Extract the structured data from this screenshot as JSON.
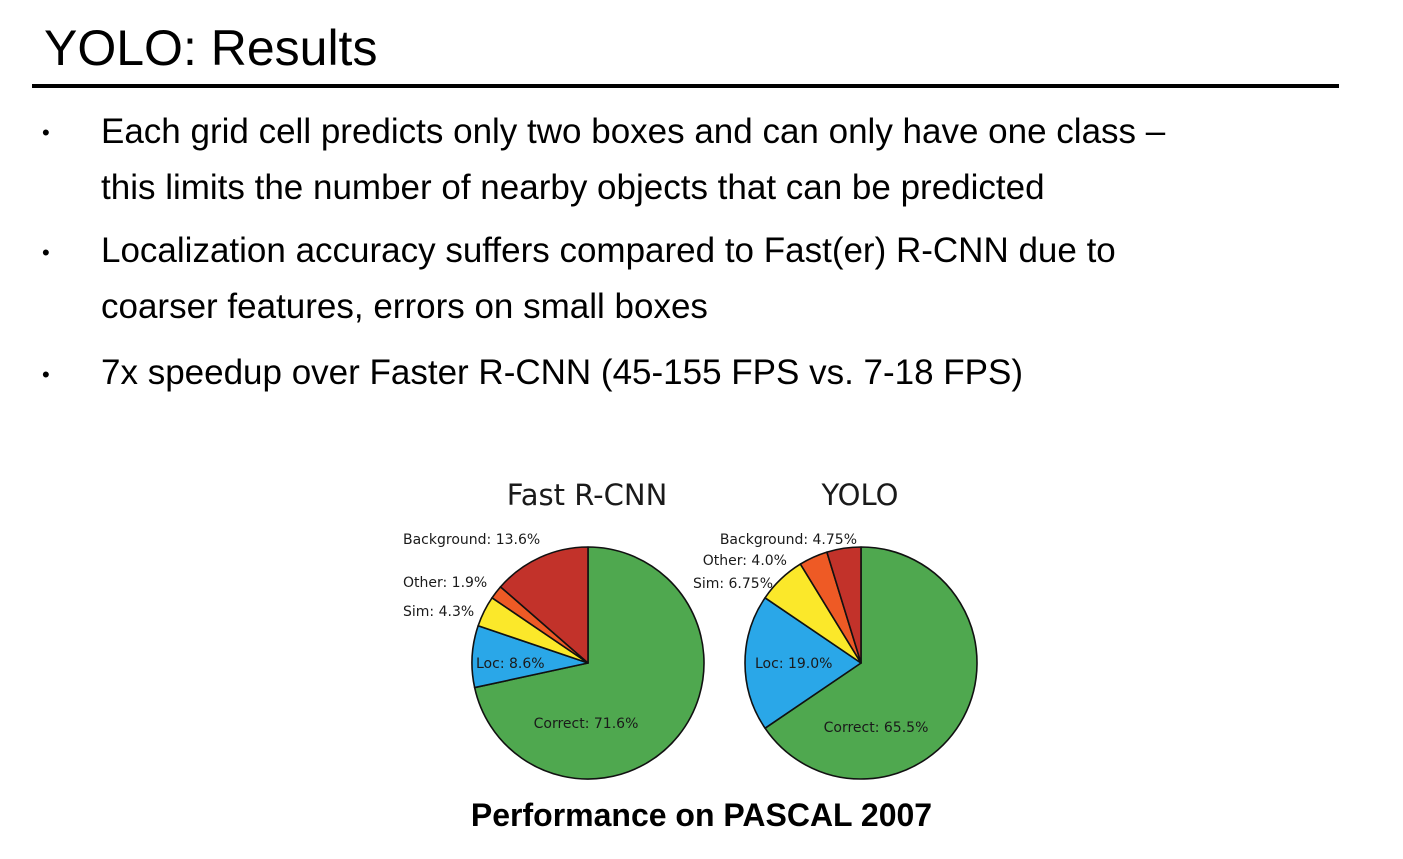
{
  "slide": {
    "title": "YOLO: Results",
    "bullets": [
      "Each grid cell predicts only two boxes and can only have one class –\nthis limits the number of nearby objects that can be predicted",
      "Localization accuracy suffers compared to Fast(er) R-CNN due to\ncoarser features, errors on small boxes",
      "7x speedup over Faster R-CNN (45-155 FPS vs. 7-18 FPS)"
    ],
    "bullet_symbol": "•"
  },
  "chart_data": [
    {
      "type": "pie",
      "title": "Fast R-CNN",
      "slices": [
        {
          "name": "Correct",
          "label": "Correct: 71.6%",
          "value": 71.6,
          "color": "#4fa84f"
        },
        {
          "name": "Loc",
          "label": "Loc: 8.6%",
          "value": 8.6,
          "color": "#2aa7e8"
        },
        {
          "name": "Sim",
          "label": "Sim: 4.3%",
          "value": 4.3,
          "color": "#fbe82a"
        },
        {
          "name": "Other",
          "label": "Other: 1.9%",
          "value": 1.9,
          "color": "#ee5a25"
        },
        {
          "name": "Background",
          "label": "Background: 13.6%",
          "value": 13.6,
          "color": "#c2322a"
        }
      ]
    },
    {
      "type": "pie",
      "title": "YOLO",
      "slices": [
        {
          "name": "Correct",
          "label": "Correct: 65.5%",
          "value": 65.5,
          "color": "#4fa84f"
        },
        {
          "name": "Loc",
          "label": "Loc: 19.0%",
          "value": 19.0,
          "color": "#2aa7e8"
        },
        {
          "name": "Sim",
          "label": "Sim: 6.75%",
          "value": 6.75,
          "color": "#fbe82a"
        },
        {
          "name": "Other",
          "label": "Other: 4.0%",
          "value": 4.0,
          "color": "#ee5a25"
        },
        {
          "name": "Background",
          "label": "Background: 4.75%",
          "value": 4.75,
          "color": "#c2322a"
        }
      ]
    }
  ],
  "caption": "Performance on PASCAL 2007"
}
